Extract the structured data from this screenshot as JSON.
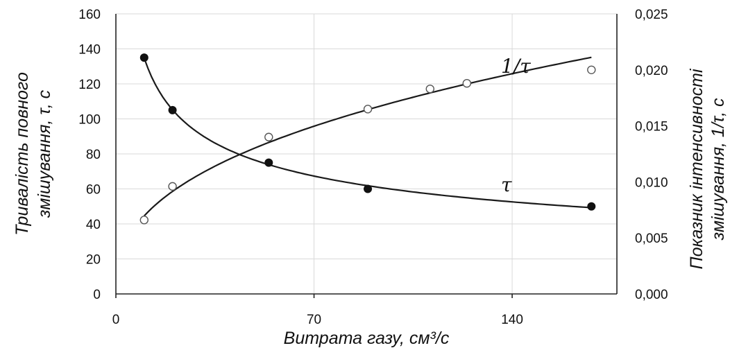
{
  "chart_data": {
    "type": "scatter",
    "xlabel": "Витрата газу, см³/с",
    "ylabel_left_line1": "Тривалість повного",
    "ylabel_left_line2": "змішування,  τ, с",
    "ylabel_right_line1": "Показник інтенсивності",
    "ylabel_right_line2": "змішування,  1/τ, с",
    "x_ticks": [
      "0",
      "70",
      "140"
    ],
    "x_tick_values": [
      0,
      70,
      140
    ],
    "y_left_ticks": [
      "0",
      "20",
      "40",
      "60",
      "80",
      "100",
      "120",
      "140",
      "160"
    ],
    "y_left_tick_values": [
      0,
      20,
      40,
      60,
      80,
      100,
      120,
      140,
      160
    ],
    "y_right_ticks": [
      "0,000",
      "0,005",
      "0,010",
      "0,015",
      "0,020",
      "0,025"
    ],
    "y_right_tick_values": [
      0,
      0.005,
      0.01,
      0.015,
      0.02,
      0.025
    ],
    "xlim": [
      0,
      177
    ],
    "ylim_left": [
      0,
      160
    ],
    "ylim_right": [
      0,
      0.025
    ],
    "grid": true,
    "series": [
      {
        "name": "τ",
        "axis": "left",
        "marker": "filled-circle",
        "x": [
          10,
          20,
          54,
          89,
          168
        ],
        "y": [
          135,
          105,
          75,
          60,
          50
        ]
      },
      {
        "name": "1/τ",
        "axis": "right",
        "marker": "open-circle",
        "x": [
          10,
          20,
          54,
          89,
          111,
          124,
          168
        ],
        "y": [
          0.0066,
          0.0096,
          0.014,
          0.0165,
          0.0183,
          0.0188,
          0.02
        ]
      }
    ],
    "colors": {
      "line": "#1a1a1a",
      "grid": "#d9d9d9"
    }
  }
}
